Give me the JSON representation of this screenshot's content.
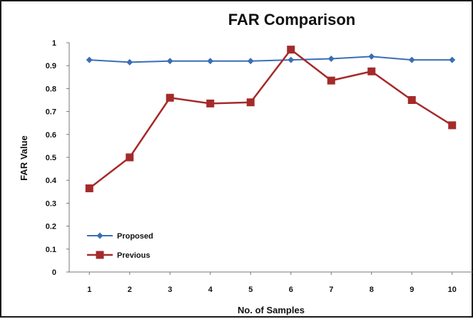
{
  "chart_data": {
    "type": "line",
    "title": "FAR Comparison",
    "xlabel": "No. of Samples",
    "ylabel": "FAR Value",
    "x": [
      "1",
      "2",
      "3",
      "4",
      "5",
      "6",
      "7",
      "8",
      "9",
      "10"
    ],
    "ylim": [
      0,
      1
    ],
    "yticks": [
      "0",
      "0.1",
      "0.2",
      "0.3",
      "0.4",
      "0.5",
      "0.6",
      "0.7",
      "0.8",
      "0.9",
      "1"
    ],
    "grid": false,
    "legend_position": "bottom-left",
    "series": [
      {
        "name": "Proposed",
        "color": "#3a6eb5",
        "marker": "diamond",
        "values": [
          0.925,
          0.915,
          0.92,
          0.92,
          0.92,
          0.925,
          0.93,
          0.94,
          0.925,
          0.925
        ]
      },
      {
        "name": "Previous",
        "color": "#a52a2a",
        "marker": "square",
        "values": [
          0.365,
          0.5,
          0.76,
          0.735,
          0.74,
          0.97,
          0.835,
          0.875,
          0.75,
          0.64
        ]
      }
    ]
  }
}
